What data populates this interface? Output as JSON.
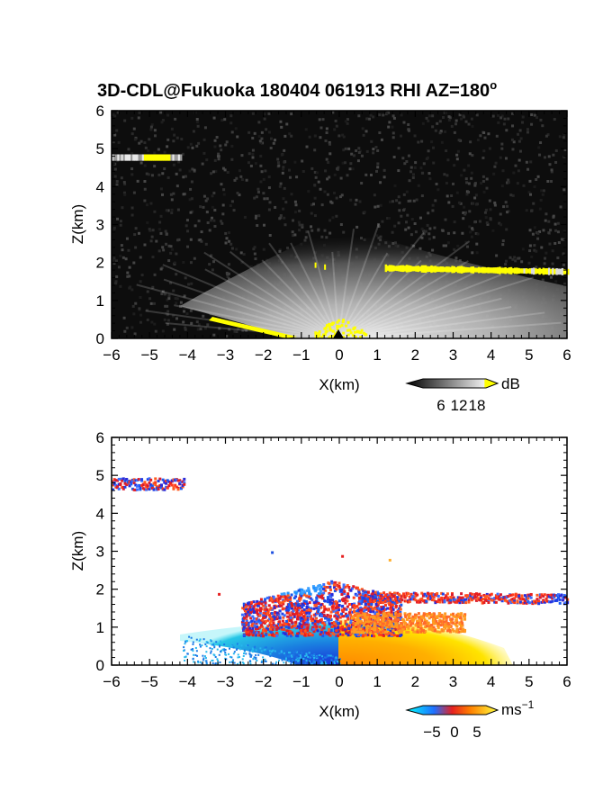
{
  "figure_title": "3D-CDL@Fukuoka 180404 061913 RHI AZ=180",
  "figure_title_sup": "o",
  "chart_data": [
    {
      "type": "heatmap",
      "variable": "reflectivity",
      "xlabel": "X(km)",
      "ylabel": "Z(km)",
      "xlim": [
        -6,
        6
      ],
      "ylim": [
        0,
        6
      ],
      "xticks": [
        "−6",
        "−5",
        "−4",
        "−3",
        "−2",
        "−1",
        "0",
        "1",
        "2",
        "3",
        "4",
        "5",
        "6"
      ],
      "yticks": [
        "0",
        "1",
        "2",
        "3",
        "4",
        "5",
        "6"
      ],
      "colorbar": {
        "unit": "dB",
        "ticks": [
          "6",
          "12",
          "18"
        ],
        "range": [
          0,
          21
        ]
      },
      "features": [
        {
          "layer": "elevated aerosol layer",
          "x": [
            -6,
            -4.2
          ],
          "z": [
            4.7,
            4.9
          ],
          "value": 18
        },
        {
          "layer": "cloud base",
          "x": [
            1.2,
            6
          ],
          "z": [
            1.65,
            1.95
          ],
          "value": 20
        },
        {
          "layer": "boundary layer",
          "x": [
            -4.3,
            6
          ],
          "z": [
            0,
            1.4
          ],
          "value": 10
        },
        {
          "layer": "ground echo",
          "x": [
            -4,
            -1.2
          ],
          "z": [
            0,
            0.6
          ],
          "value": 20
        }
      ]
    },
    {
      "type": "heatmap",
      "variable": "radial_velocity",
      "xlabel": "X(km)",
      "ylabel": "Z(km)",
      "xlim": [
        -6,
        6
      ],
      "ylim": [
        0,
        6
      ],
      "xticks": [
        "−6",
        "−5",
        "−4",
        "−3",
        "−2",
        "−1",
        "0",
        "1",
        "2",
        "3",
        "4",
        "5",
        "6"
      ],
      "yticks": [
        "0",
        "1",
        "2",
        "3",
        "4",
        "5",
        "6"
      ],
      "colorbar": {
        "unit": "ms",
        "unit_sup": "−1",
        "ticks": [
          "−5",
          "0",
          "5"
        ],
        "range": [
          -7,
          7
        ]
      },
      "features": [
        {
          "layer": "elevated aerosol layer",
          "x": [
            -6,
            -4.1
          ],
          "z": [
            4.6,
            4.95
          ],
          "value": -1
        },
        {
          "layer": "cloud base",
          "x": [
            0.5,
            6
          ],
          "z": [
            1.6,
            2.0
          ],
          "value": 1
        },
        {
          "layer": "receding flow",
          "x": [
            0,
            4.5
          ],
          "z": [
            0,
            1.2
          ],
          "value": 3
        },
        {
          "layer": "approaching flow",
          "x": [
            -4.3,
            0
          ],
          "z": [
            0,
            0.9
          ],
          "value": -4
        },
        {
          "layer": "mixed upper region",
          "x": [
            -2.5,
            1.5
          ],
          "z": [
            0.8,
            2.3
          ],
          "value": -2
        }
      ]
    }
  ],
  "colors": {
    "background_panel": "#000000",
    "highlight": "#ffff00",
    "velocity_neg": "#1f4fe6",
    "velocity_pos": "#e6341e"
  }
}
